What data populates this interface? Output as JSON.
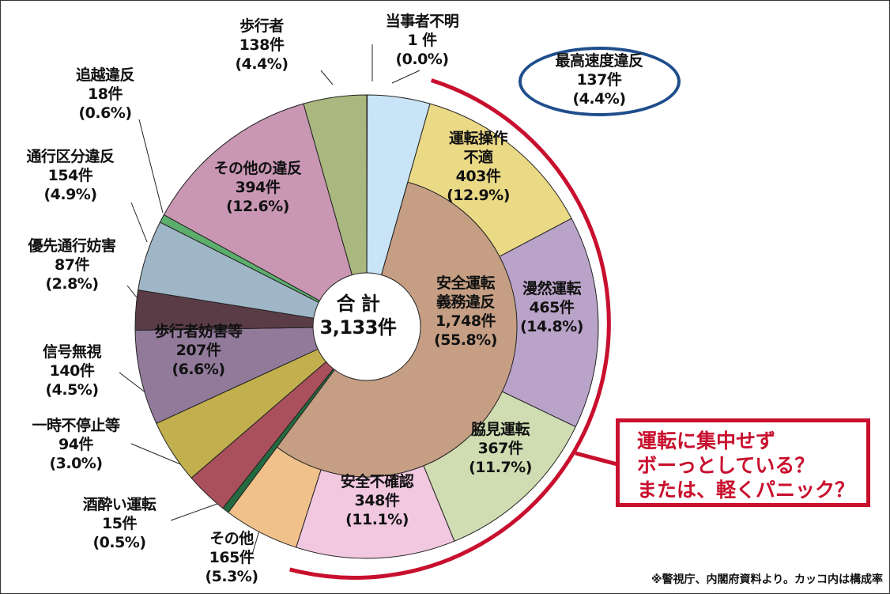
{
  "chart_data": {
    "type": "pie",
    "subtype": "donut-with-inner-group",
    "total_label": "合 計",
    "total_value": "3,133件",
    "unit": "件",
    "slices": [
      {
        "name": "当事者不明",
        "count": 1,
        "count_label": "1 件",
        "pct_label": "(0.0%)",
        "color": "#c8e4f6"
      },
      {
        "name": "最高速度違反",
        "count": 137,
        "count_label": "137件",
        "pct_label": "(4.4%)",
        "color": "#c8e4f6"
      },
      {
        "name": "運転操作不適",
        "count": 403,
        "count_label": "403件",
        "pct_label": "(12.9%)",
        "color": "#ead985"
      },
      {
        "name": "漫然運転",
        "count": 465,
        "count_label": "465件",
        "pct_label": "(14.8%)",
        "color": "#b9a3c8"
      },
      {
        "name": "脇見運転",
        "count": 367,
        "count_label": "367件",
        "pct_label": "(11.7%)",
        "color": "#d0dcb1"
      },
      {
        "name": "安全不確認",
        "count": 348,
        "count_label": "348件",
        "pct_label": "(11.1%)",
        "color": "#f1c8df"
      },
      {
        "name": "その他",
        "count": 165,
        "count_label": "165件",
        "pct_label": "(5.3%)",
        "color": "#f1c18b"
      },
      {
        "name": "酒酔い運転",
        "count": 15,
        "count_label": "15件",
        "pct_label": "(0.5%)",
        "color": "#246a40"
      },
      {
        "name": "一時不停止等",
        "count": 94,
        "count_label": "94件",
        "pct_label": "(3.0%)",
        "color": "#a9505c"
      },
      {
        "name": "信号無視",
        "count": 140,
        "count_label": "140件",
        "pct_label": "(4.5%)",
        "color": "#c2b04e"
      },
      {
        "name": "歩行者妨害等",
        "count": 207,
        "count_label": "207件",
        "pct_label": "(6.6%)",
        "color": "#927a9b"
      },
      {
        "name": "優先通行妨害",
        "count": 87,
        "count_label": "87件",
        "pct_label": "(2.8%)",
        "color": "#5a3c47"
      },
      {
        "name": "通行区分違反",
        "count": 154,
        "count_label": "154件",
        "pct_label": "(4.9%)",
        "color": "#9fb6c6"
      },
      {
        "name": "追越違反",
        "count": 18,
        "count_label": "18件",
        "pct_label": "(0.6%)",
        "color": "#5cae6c"
      },
      {
        "name": "その他の違反",
        "count": 394,
        "count_label": "394件",
        "pct_label": "(12.6%)",
        "color": "#c997b3"
      },
      {
        "name": "歩行者",
        "count": 138,
        "count_label": "138件",
        "pct_label": "(4.4%)",
        "color": "#aab77f"
      }
    ],
    "inner_group": {
      "name_line1": "安全運転",
      "name_line2": "義務違反",
      "count": 1748,
      "count_label": "1,748件",
      "pct_label": "(55.8%)",
      "color": "#c59e84",
      "from_slice": "運転操作不適",
      "to_slice": "その他"
    },
    "callout": [
      "運転に集中せず",
      "ボーっとしている？",
      "または、軽くパニック？"
    ],
    "highlight_color": "#c8102e",
    "oval_color": "#1f4e8c",
    "footnote": "※警視庁、内閣府資料より。カッコ内は構成率"
  }
}
